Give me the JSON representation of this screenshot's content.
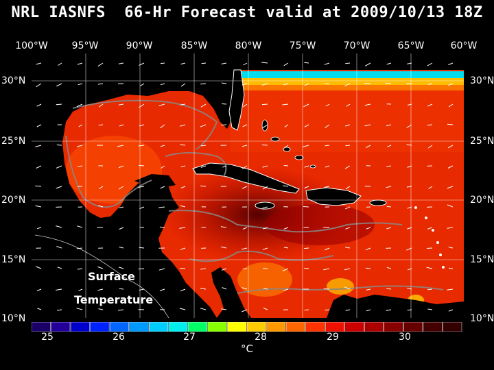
{
  "title": "NRL IASNFS  66-Hr Forecast valid at 2009/10/13 18Z",
  "lon_labels": [
    "100°W",
    "95°W",
    "90°W",
    "85°W",
    "80°W",
    "75°W",
    "70°W",
    "65°W",
    "60°W"
  ],
  "lat_labels": [
    "30°N",
    "25°N",
    "20°N",
    "15°N",
    "10°N"
  ],
  "overlay_text": {
    "line1": "Surface",
    "line2": "Temperature"
  },
  "colorbar": {
    "labels": [
      "25",
      "26",
      "27",
      "28",
      "29",
      "30"
    ],
    "unit": "°C",
    "colors": [
      "#1a0066",
      "#220099",
      "#0000cc",
      "#0022ff",
      "#0066ff",
      "#0099ff",
      "#00ccff",
      "#00eeee",
      "#00ff66",
      "#88ff00",
      "#ffff00",
      "#ffcc00",
      "#ff9900",
      "#ff6600",
      "#ff3300",
      "#ee1100",
      "#cc0000",
      "#aa0000",
      "#880000",
      "#660000",
      "#440000",
      "#330000"
    ]
  }
}
